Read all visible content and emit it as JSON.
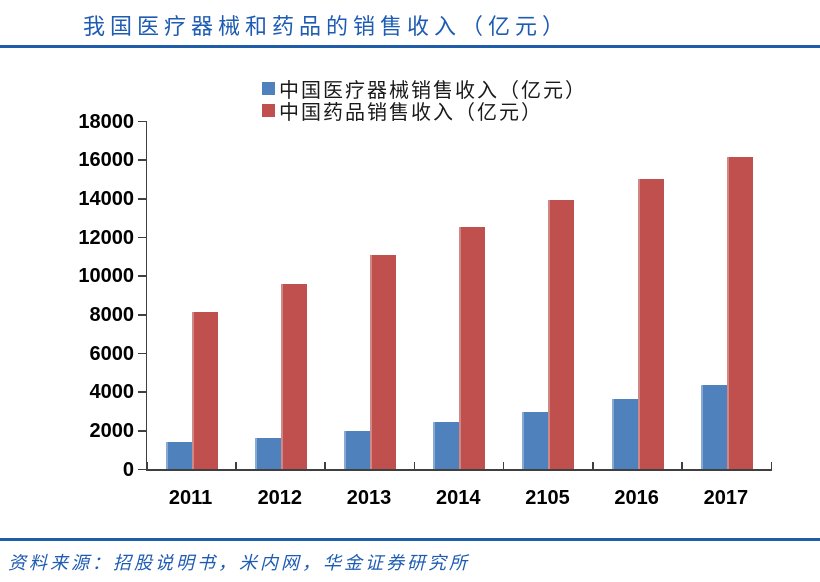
{
  "title": "我国医疗器械和药品的销售收入（亿元）",
  "source": "资料来源：招股说明书，米内网，华金证券研究所",
  "colors": {
    "title_blue": "#1E5CB3",
    "rule_blue": "#1F5CA9",
    "axis_gray": "#3F3F3F",
    "bar_blue": "#4F81BD",
    "bar_red": "#C0504D"
  },
  "chart_data": {
    "type": "bar",
    "title": "我国医疗器械和药品的销售收入（亿元）",
    "categories": [
      "2011",
      "2012",
      "2013",
      "2014",
      "2105",
      "2016",
      "2017"
    ],
    "series": [
      {
        "name": "中国医疗器械销售收入（亿元）",
        "color": "#4F81BD",
        "values": [
          1400,
          1600,
          1950,
          2450,
          2950,
          3600,
          4350
        ]
      },
      {
        "name": "中国药品销售收入（亿元）",
        "color": "#C0504D",
        "values": [
          8100,
          9550,
          11050,
          12500,
          13900,
          15000,
          16150
        ]
      }
    ],
    "xlabel": "",
    "ylabel": "",
    "ylim": [
      0,
      18000
    ],
    "ytick_step": 2000,
    "grid": false,
    "legend_position": "top-center"
  }
}
